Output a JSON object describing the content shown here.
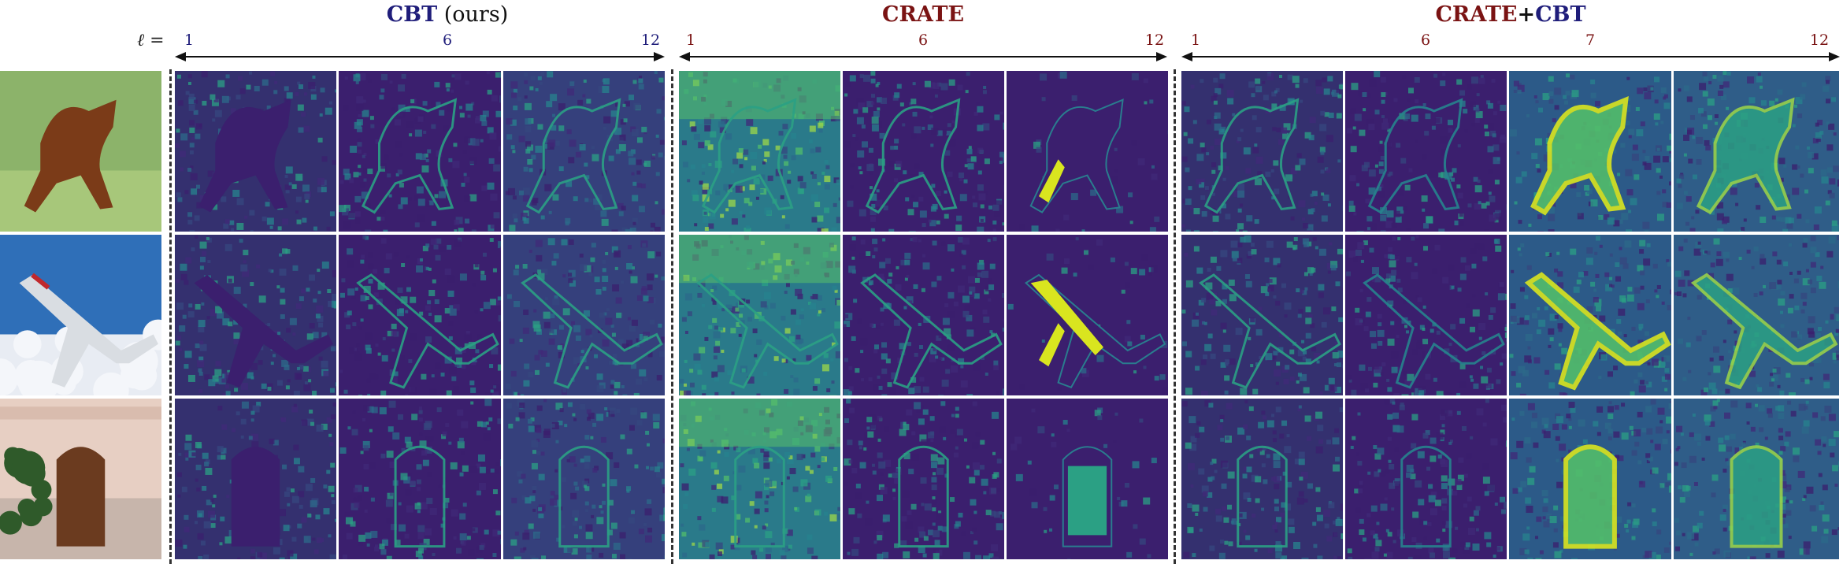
{
  "header": {
    "ell_label": "ℓ =",
    "groups": [
      {
        "title_main": "CBT",
        "title_suffix": " (ours)",
        "ticks": [
          "1",
          "6",
          "12"
        ]
      },
      {
        "title_main": "CRATE",
        "ticks": [
          "1",
          "6",
          "12"
        ]
      },
      {
        "title_a": "CRATE",
        "title_plus": "+",
        "title_b": "CBT",
        "ticks": [
          "1",
          "6",
          "7",
          "12"
        ]
      }
    ]
  },
  "rows": [
    {
      "subject": "horse",
      "sky": "#8cb36a",
      "ground": "#a7c77a",
      "object": "#7b3b18"
    },
    {
      "subject": "airplane",
      "sky": "#2f6fb8",
      "ground": "#e8ecf3",
      "object": "#d9dde2"
    },
    {
      "subject": "door",
      "sky": "#e7cfc3",
      "ground": "#c7b5ab",
      "object": "#6b3b1f"
    }
  ],
  "colors": {
    "cbt_blue": "#1f1d7a",
    "crate_red": "#7a1313",
    "map_dark": "#3b1f6e",
    "map_mid": "#2a7c8e",
    "map_bright": "#d9e51f"
  }
}
